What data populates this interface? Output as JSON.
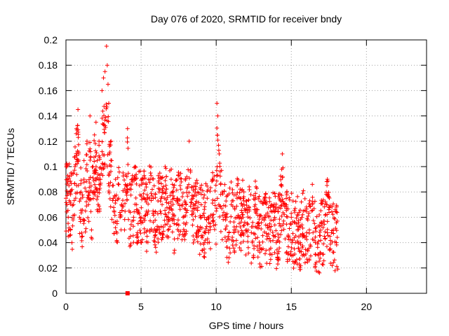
{
  "chart_data": {
    "type": "scatter",
    "title": "Day 076 of 2020, SRMTID for receiver bndy",
    "xlabel": "GPS time / hours",
    "ylabel": "SRMTID / TECUs",
    "xlim": [
      0,
      24
    ],
    "ylim": [
      0,
      0.2
    ],
    "xticks": [
      0,
      5,
      10,
      15,
      20
    ],
    "xtick_labels": [
      "0",
      "5",
      "10",
      "15",
      "20"
    ],
    "yticks": [
      0,
      0.02,
      0.04,
      0.06,
      0.08,
      0.1,
      0.12,
      0.14,
      0.16,
      0.18,
      0.2
    ],
    "ytick_labels": [
      "0",
      "0.02",
      "0.04",
      "0.06",
      "0.08",
      "0.1",
      "0.12",
      "0.14",
      "0.16",
      "0.18",
      "0.2"
    ],
    "grid": true,
    "marker": "+",
    "color": "#ff0000",
    "x_range_of_data": [
      0,
      18.1
    ],
    "outlier_marker": {
      "x": 4.1,
      "y": 0.0
    },
    "series": [
      {
        "name": "SRMTID",
        "x": [
          0.0,
          0.1,
          0.15,
          0.2,
          0.3,
          0.35,
          0.4,
          0.5,
          0.6,
          0.7,
          0.8,
          0.85,
          0.9,
          1.0,
          1.1,
          1.2,
          1.3,
          1.4,
          1.5,
          1.6,
          1.7,
          1.8,
          1.9,
          2.0,
          2.1,
          2.2,
          2.3,
          2.4,
          2.5,
          2.6,
          2.7,
          2.75,
          2.8,
          2.85,
          2.9,
          3.0,
          3.1,
          3.2,
          3.3,
          3.4,
          3.5,
          3.6,
          3.7,
          3.8,
          3.9,
          4.0,
          4.1,
          4.2,
          4.3,
          4.4,
          4.5,
          4.6,
          4.7,
          4.8,
          4.9,
          5.0,
          5.2,
          5.4,
          5.6,
          5.8,
          6.0,
          6.2,
          6.4,
          6.6,
          6.8,
          7.0,
          7.2,
          7.4,
          7.6,
          7.8,
          8.0,
          8.2,
          8.4,
          8.6,
          8.8,
          9.0,
          9.2,
          9.4,
          9.6,
          9.8,
          10.0,
          10.05,
          10.1,
          10.2,
          10.4,
          10.6,
          10.8,
          11.0,
          11.2,
          11.4,
          11.6,
          11.8,
          12.0,
          12.2,
          12.4,
          12.6,
          12.8,
          13.0,
          13.2,
          13.4,
          13.6,
          13.8,
          14.0,
          14.2,
          14.4,
          14.6,
          14.8,
          15.0,
          15.2,
          15.4,
          15.6,
          15.8,
          16.0,
          16.2,
          16.4,
          16.6,
          16.8,
          17.0,
          17.2,
          17.4,
          17.6,
          17.8,
          18.0
        ],
        "values": [
          0.075,
          0.09,
          0.06,
          0.085,
          0.05,
          0.095,
          0.04,
          0.07,
          0.1,
          0.13,
          0.145,
          0.11,
          0.06,
          0.08,
          0.045,
          0.09,
          0.065,
          0.12,
          0.07,
          0.14,
          0.05,
          0.1,
          0.125,
          0.135,
          0.08,
          0.12,
          0.09,
          0.16,
          0.17,
          0.175,
          0.195,
          0.18,
          0.165,
          0.15,
          0.11,
          0.12,
          0.085,
          0.065,
          0.09,
          0.055,
          0.075,
          0.06,
          0.07,
          0.095,
          0.05,
          0.08,
          0.13,
          0.065,
          0.045,
          0.09,
          0.06,
          0.1,
          0.07,
          0.055,
          0.085,
          0.06,
          0.075,
          0.045,
          0.09,
          0.065,
          0.05,
          0.08,
          0.07,
          0.1,
          0.06,
          0.09,
          0.055,
          0.075,
          0.085,
          0.06,
          0.07,
          0.12,
          0.065,
          0.08,
          0.05,
          0.06,
          0.04,
          0.075,
          0.055,
          0.09,
          0.065,
          0.15,
          0.14,
          0.11,
          0.08,
          0.06,
          0.045,
          0.07,
          0.05,
          0.085,
          0.06,
          0.075,
          0.05,
          0.065,
          0.04,
          0.07,
          0.055,
          0.035,
          0.06,
          0.045,
          0.05,
          0.065,
          0.04,
          0.055,
          0.11,
          0.07,
          0.045,
          0.06,
          0.035,
          0.05,
          0.04,
          0.065,
          0.045,
          0.05,
          0.07,
          0.04,
          0.03,
          0.055,
          0.045,
          0.09,
          0.035,
          0.05,
          0.04
        ]
      }
    ]
  }
}
